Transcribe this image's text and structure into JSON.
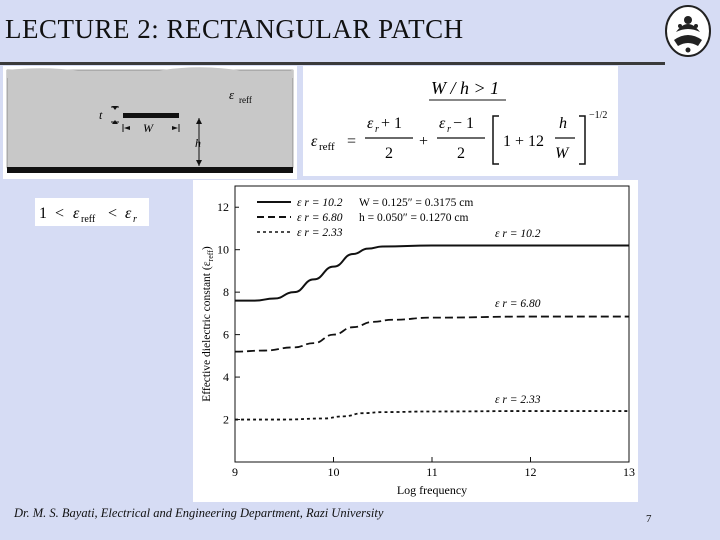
{
  "slide": {
    "title": "LECTURE 2: RECTANGULAR PATCH",
    "footer": "Dr. M. S. Bayati, Electrical and Engineering Department, Razi University",
    "page_number": "7"
  },
  "microstrip_figure": {
    "eps_label": "ε",
    "eps_sub": "reff",
    "t_label": "t",
    "w_label": "W",
    "h_label": "h"
  },
  "formula": {
    "condition": "W / h > 1",
    "lhs": "ε",
    "lhs_sub": "reff",
    "equals": "=",
    "num1": "ε",
    "num1_sub": "r",
    "num1_rest": " + 1",
    "den": "2",
    "plus": "+",
    "num2": "ε",
    "num2_sub": "r",
    "num2_rest": " − 1",
    "one_plus": "1 + 12",
    "h": "h",
    "W": "W",
    "exponent": "−1/2"
  },
  "inequality": {
    "one": "1",
    "lt1": "<",
    "eps": "ε",
    "eps_sub": "reff",
    "lt2": "<",
    "eps_r": "ε",
    "eps_r_sub": "r"
  },
  "chart_data": {
    "type": "line",
    "xlabel": "Log frequency",
    "ylabel": "Effective dielectric constant (ε",
    "ylabel_sub": "reff",
    "ylabel_end": ")",
    "xlim": [
      9,
      13
    ],
    "ylim": [
      0,
      13
    ],
    "x_ticks": [
      "9",
      "10",
      "11",
      "12",
      "13"
    ],
    "y_ticks": [
      "2",
      "4",
      "6",
      "8",
      "10",
      "12"
    ],
    "legend": {
      "entries": [
        "ε r = 10.2",
        "ε r = 6.80",
        "ε r = 2.33"
      ],
      "params": [
        "W = 0.125″ = 0.3175 cm",
        "h = 0.050″ = 0.1270 cm"
      ]
    },
    "annotations": [
      "ε r = 10.2",
      "ε r = 6.80",
      "ε r = 2.33"
    ],
    "series": [
      {
        "name": "ε r = 10.2",
        "style": "solid",
        "x": [
          9,
          9.2,
          9.4,
          9.6,
          9.8,
          10.0,
          10.2,
          10.35,
          10.5,
          11,
          12,
          13
        ],
        "y": [
          7.6,
          7.6,
          7.7,
          8.0,
          8.6,
          9.2,
          9.8,
          10.05,
          10.15,
          10.2,
          10.2,
          10.2
        ]
      },
      {
        "name": "ε r = 6.80",
        "style": "dashed",
        "x": [
          9,
          9.3,
          9.6,
          9.8,
          10.0,
          10.2,
          10.4,
          10.6,
          11,
          12,
          13
        ],
        "y": [
          5.2,
          5.25,
          5.4,
          5.6,
          6.0,
          6.35,
          6.6,
          6.7,
          6.8,
          6.85,
          6.85
        ]
      },
      {
        "name": "ε r = 2.33",
        "style": "dotted",
        "x": [
          9,
          9.5,
          9.9,
          10.1,
          10.3,
          10.5,
          11,
          12,
          13
        ],
        "y": [
          2.0,
          2.0,
          2.05,
          2.15,
          2.3,
          2.35,
          2.38,
          2.4,
          2.4
        ]
      }
    ]
  }
}
